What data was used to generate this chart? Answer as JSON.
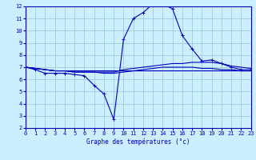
{
  "title": "Graphe des températures (°c)",
  "background_color": "#cceeff",
  "grid_color": "#99ccdd",
  "line_color": "#0000bb",
  "x_min": 0,
  "x_max": 23,
  "y_min": 2,
  "y_max": 12,
  "line1_x": [
    0,
    1,
    2,
    3,
    4,
    5,
    6,
    7,
    8,
    9,
    10,
    11,
    12,
    13,
    14,
    15,
    16,
    17,
    18,
    19,
    20,
    21,
    22,
    23
  ],
  "line1_y": [
    7.0,
    6.8,
    6.5,
    6.5,
    6.5,
    6.4,
    6.3,
    5.5,
    4.8,
    2.7,
    9.3,
    11.0,
    11.5,
    12.2,
    12.2,
    11.8,
    9.6,
    8.5,
    7.5,
    7.6,
    7.3,
    7.0,
    6.8,
    6.8
  ],
  "line2_x": [
    0,
    1,
    2,
    3,
    4,
    5,
    6,
    7,
    8,
    9,
    10,
    11,
    12,
    13,
    14,
    15,
    16,
    17,
    18,
    19,
    20,
    21,
    22,
    23
  ],
  "line2_y": [
    7.0,
    6.9,
    6.8,
    6.7,
    6.7,
    6.6,
    6.6,
    6.6,
    6.6,
    6.6,
    6.8,
    6.9,
    7.0,
    7.1,
    7.2,
    7.3,
    7.3,
    7.4,
    7.4,
    7.4,
    7.3,
    7.1,
    7.0,
    6.9
  ],
  "line3_x": [
    0,
    1,
    2,
    3,
    4,
    5,
    6,
    7,
    8,
    9,
    10,
    11,
    12,
    13,
    14,
    15,
    16,
    17,
    18,
    19,
    20,
    21,
    22,
    23
  ],
  "line3_y": [
    7.0,
    6.9,
    6.8,
    6.7,
    6.7,
    6.6,
    6.6,
    6.6,
    6.5,
    6.5,
    6.6,
    6.7,
    6.8,
    6.9,
    7.0,
    7.0,
    7.0,
    7.0,
    6.9,
    6.9,
    6.8,
    6.8,
    6.7,
    6.7
  ],
  "line4_x": [
    0,
    1,
    2,
    3,
    4,
    5,
    6,
    7,
    8,
    9,
    10,
    11,
    12,
    13,
    14,
    15,
    16,
    17,
    18,
    19,
    20,
    21,
    22,
    23
  ],
  "line4_y": [
    7.0,
    6.9,
    6.8,
    6.7,
    6.7,
    6.7,
    6.7,
    6.7,
    6.7,
    6.7,
    6.7,
    6.7,
    6.7,
    6.7,
    6.7,
    6.7,
    6.7,
    6.7,
    6.7,
    6.7,
    6.7,
    6.7,
    6.7,
    6.7
  ]
}
